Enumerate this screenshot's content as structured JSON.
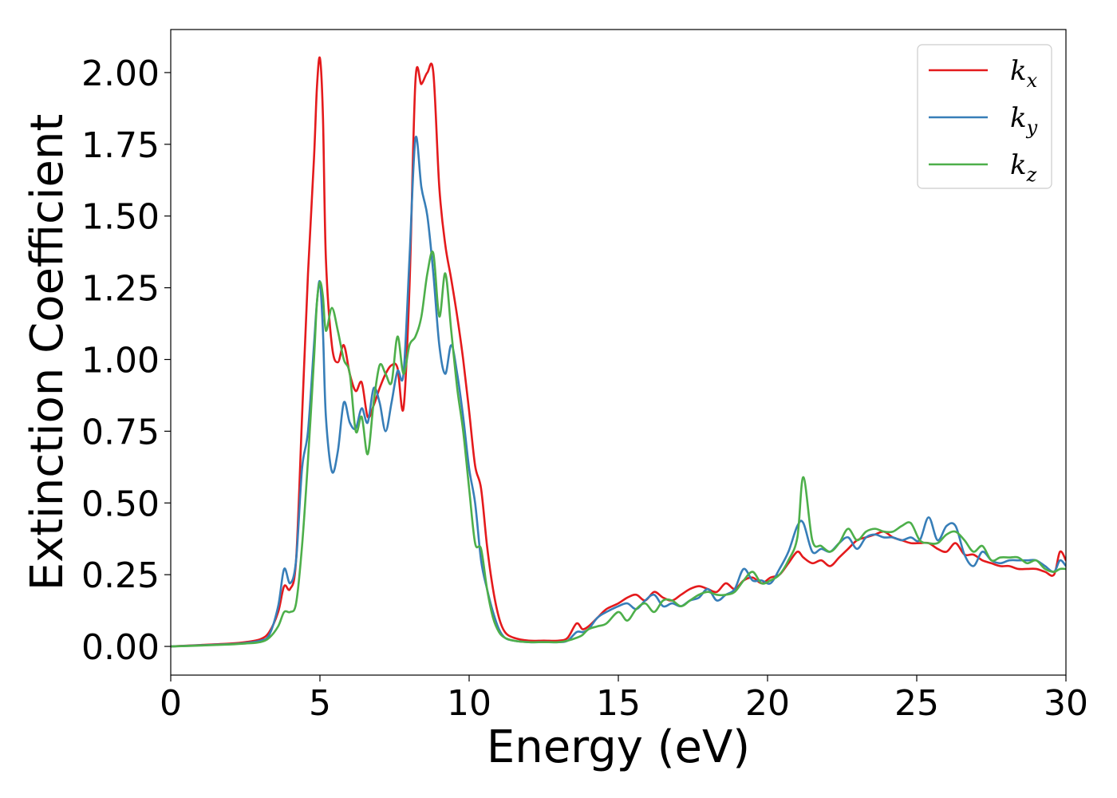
{
  "chart_data": {
    "type": "line",
    "title": "",
    "xlabel": "Energy (eV)",
    "ylabel": "Extinction Coefficient",
    "xlim": [
      0,
      30
    ],
    "ylim": [
      -0.1,
      2.15
    ],
    "xticks": [
      0,
      5,
      10,
      15,
      20,
      25,
      30
    ],
    "xtick_labels": [
      "0",
      "5",
      "10",
      "15",
      "20",
      "25",
      "30"
    ],
    "yticks": [
      0.0,
      0.25,
      0.5,
      0.75,
      1.0,
      1.25,
      1.5,
      1.75,
      2.0
    ],
    "ytick_labels": [
      "0.00",
      "0.25",
      "0.50",
      "0.75",
      "1.00",
      "1.25",
      "1.50",
      "1.75",
      "2.00"
    ],
    "grid": false,
    "legend_position": "top-right",
    "series": [
      {
        "name": "k",
        "subscript": "x",
        "color": "#e41a1c",
        "x": [
          0,
          1,
          2,
          2.5,
          3,
          3.3,
          3.6,
          3.8,
          4.0,
          4.2,
          4.4,
          4.6,
          4.8,
          4.9,
          5.0,
          5.1,
          5.2,
          5.4,
          5.6,
          5.8,
          6.0,
          6.2,
          6.4,
          6.6,
          6.8,
          7.0,
          7.2,
          7.4,
          7.6,
          7.8,
          8.0,
          8.2,
          8.4,
          8.6,
          8.8,
          9.0,
          9.2,
          9.4,
          9.6,
          9.8,
          10.0,
          10.2,
          10.4,
          10.6,
          10.8,
          11.0,
          11.2,
          11.5,
          12.0,
          12.5,
          13.0,
          13.3,
          13.6,
          13.8,
          14.0,
          14.3,
          14.6,
          15.0,
          15.3,
          15.6,
          15.9,
          16.2,
          16.5,
          16.8,
          17.1,
          17.4,
          17.7,
          18.0,
          18.3,
          18.6,
          18.9,
          19.2,
          19.5,
          19.8,
          20.1,
          20.4,
          20.7,
          21.0,
          21.2,
          21.5,
          21.8,
          22.1,
          22.4,
          22.7,
          23.0,
          23.3,
          23.6,
          23.9,
          24.2,
          24.5,
          24.8,
          25.1,
          25.4,
          25.7,
          26.0,
          26.3,
          26.6,
          26.9,
          27.2,
          27.5,
          27.8,
          28.1,
          28.4,
          28.7,
          29.0,
          29.3,
          29.6,
          29.8,
          30.0
        ],
        "y": [
          0.0,
          0.005,
          0.01,
          0.015,
          0.025,
          0.05,
          0.12,
          0.21,
          0.2,
          0.3,
          0.8,
          1.3,
          1.7,
          1.95,
          2.05,
          1.85,
          1.35,
          1.05,
          0.99,
          1.05,
          0.95,
          0.89,
          0.92,
          0.8,
          0.84,
          0.9,
          0.95,
          0.98,
          0.97,
          0.83,
          1.25,
          1.97,
          1.96,
          2.0,
          2.0,
          1.6,
          1.4,
          1.28,
          1.15,
          1.0,
          0.82,
          0.63,
          0.55,
          0.35,
          0.2,
          0.1,
          0.05,
          0.03,
          0.02,
          0.02,
          0.02,
          0.03,
          0.08,
          0.06,
          0.07,
          0.1,
          0.13,
          0.15,
          0.17,
          0.18,
          0.16,
          0.19,
          0.17,
          0.16,
          0.18,
          0.2,
          0.21,
          0.2,
          0.19,
          0.22,
          0.2,
          0.23,
          0.24,
          0.22,
          0.24,
          0.25,
          0.29,
          0.33,
          0.31,
          0.29,
          0.3,
          0.28,
          0.31,
          0.34,
          0.37,
          0.38,
          0.39,
          0.4,
          0.38,
          0.37,
          0.36,
          0.36,
          0.36,
          0.34,
          0.33,
          0.36,
          0.32,
          0.32,
          0.3,
          0.29,
          0.28,
          0.28,
          0.27,
          0.27,
          0.27,
          0.26,
          0.25,
          0.33,
          0.3
        ]
      },
      {
        "name": "k",
        "subscript": "y",
        "color": "#377eb8",
        "x": [
          0,
          1,
          2,
          2.5,
          3,
          3.3,
          3.6,
          3.8,
          4.0,
          4.2,
          4.4,
          4.6,
          4.8,
          4.9,
          5.0,
          5.1,
          5.2,
          5.4,
          5.6,
          5.8,
          6.0,
          6.2,
          6.4,
          6.6,
          6.8,
          7.0,
          7.2,
          7.4,
          7.6,
          7.8,
          8.0,
          8.2,
          8.4,
          8.6,
          8.8,
          9.0,
          9.2,
          9.4,
          9.6,
          9.8,
          10.0,
          10.2,
          10.4,
          10.6,
          10.8,
          11.0,
          11.2,
          11.5,
          12.0,
          12.5,
          13.0,
          13.3,
          13.6,
          13.8,
          14.0,
          14.3,
          14.6,
          15.0,
          15.3,
          15.6,
          15.9,
          16.2,
          16.5,
          16.8,
          17.1,
          17.4,
          17.7,
          18.0,
          18.3,
          18.6,
          18.9,
          19.2,
          19.5,
          19.8,
          20.1,
          20.4,
          20.7,
          21.0,
          21.2,
          21.5,
          21.8,
          22.1,
          22.4,
          22.7,
          23.0,
          23.3,
          23.6,
          23.9,
          24.2,
          24.5,
          24.8,
          25.1,
          25.4,
          25.7,
          26.0,
          26.3,
          26.6,
          26.9,
          27.2,
          27.5,
          27.8,
          28.1,
          28.4,
          28.7,
          29.0,
          29.3,
          29.6,
          29.8,
          30.0
        ],
        "y": [
          0.0,
          0.004,
          0.008,
          0.012,
          0.02,
          0.04,
          0.14,
          0.27,
          0.22,
          0.3,
          0.62,
          0.75,
          1.05,
          1.2,
          1.27,
          1.1,
          0.8,
          0.61,
          0.68,
          0.85,
          0.78,
          0.76,
          0.83,
          0.78,
          0.9,
          0.85,
          0.75,
          0.85,
          0.96,
          0.95,
          1.35,
          1.77,
          1.6,
          1.5,
          1.3,
          1.05,
          0.95,
          1.05,
          0.95,
          0.8,
          0.62,
          0.5,
          0.3,
          0.2,
          0.12,
          0.06,
          0.03,
          0.02,
          0.015,
          0.015,
          0.015,
          0.02,
          0.05,
          0.05,
          0.06,
          0.1,
          0.12,
          0.14,
          0.15,
          0.13,
          0.16,
          0.18,
          0.14,
          0.15,
          0.14,
          0.16,
          0.17,
          0.2,
          0.16,
          0.18,
          0.2,
          0.27,
          0.23,
          0.23,
          0.22,
          0.27,
          0.33,
          0.42,
          0.43,
          0.33,
          0.34,
          0.33,
          0.36,
          0.38,
          0.34,
          0.38,
          0.39,
          0.38,
          0.38,
          0.37,
          0.38,
          0.37,
          0.45,
          0.37,
          0.42,
          0.42,
          0.32,
          0.28,
          0.33,
          0.3,
          0.29,
          0.3,
          0.3,
          0.3,
          0.3,
          0.28,
          0.26,
          0.3,
          0.28
        ]
      },
      {
        "name": "k",
        "subscript": "z",
        "color": "#4daf4a",
        "x": [
          0,
          1,
          2,
          2.5,
          3,
          3.3,
          3.6,
          3.8,
          4.0,
          4.2,
          4.4,
          4.6,
          4.8,
          4.9,
          5.0,
          5.1,
          5.2,
          5.4,
          5.6,
          5.8,
          6.0,
          6.2,
          6.4,
          6.6,
          6.8,
          7.0,
          7.2,
          7.4,
          7.6,
          7.8,
          8.0,
          8.2,
          8.4,
          8.6,
          8.8,
          9.0,
          9.2,
          9.4,
          9.6,
          9.8,
          10.0,
          10.2,
          10.4,
          10.6,
          10.8,
          11.0,
          11.2,
          11.5,
          12.0,
          12.5,
          13.0,
          13.3,
          13.6,
          13.8,
          14.0,
          14.3,
          14.6,
          15.0,
          15.3,
          15.6,
          15.9,
          16.2,
          16.5,
          16.8,
          17.1,
          17.4,
          17.7,
          18.0,
          18.3,
          18.6,
          18.9,
          19.2,
          19.5,
          19.8,
          20.1,
          20.4,
          20.7,
          21.0,
          21.2,
          21.5,
          21.8,
          22.1,
          22.4,
          22.7,
          23.0,
          23.3,
          23.6,
          23.9,
          24.2,
          24.5,
          24.8,
          25.1,
          25.4,
          25.7,
          26.0,
          26.3,
          26.6,
          26.9,
          27.2,
          27.5,
          27.8,
          28.1,
          28.4,
          28.7,
          29.0,
          29.3,
          29.6,
          29.8,
          30.0
        ],
        "y": [
          0.0,
          0.003,
          0.007,
          0.01,
          0.015,
          0.03,
          0.07,
          0.12,
          0.12,
          0.15,
          0.35,
          0.65,
          1.0,
          1.2,
          1.27,
          1.22,
          1.1,
          1.18,
          1.1,
          1.0,
          0.95,
          0.75,
          0.8,
          0.67,
          0.85,
          0.98,
          0.95,
          0.92,
          1.08,
          0.95,
          1.05,
          1.08,
          1.15,
          1.3,
          1.37,
          1.15,
          1.3,
          1.1,
          0.9,
          0.75,
          0.55,
          0.36,
          0.34,
          0.2,
          0.1,
          0.05,
          0.03,
          0.02,
          0.015,
          0.015,
          0.015,
          0.02,
          0.03,
          0.04,
          0.06,
          0.07,
          0.08,
          0.12,
          0.09,
          0.13,
          0.15,
          0.12,
          0.16,
          0.16,
          0.14,
          0.16,
          0.18,
          0.19,
          0.18,
          0.18,
          0.19,
          0.23,
          0.26,
          0.22,
          0.23,
          0.25,
          0.3,
          0.38,
          0.59,
          0.37,
          0.35,
          0.33,
          0.36,
          0.41,
          0.37,
          0.4,
          0.41,
          0.4,
          0.4,
          0.42,
          0.43,
          0.37,
          0.36,
          0.36,
          0.39,
          0.4,
          0.37,
          0.33,
          0.35,
          0.3,
          0.31,
          0.31,
          0.31,
          0.29,
          0.3,
          0.27,
          0.26,
          0.27,
          0.27
        ]
      }
    ]
  }
}
